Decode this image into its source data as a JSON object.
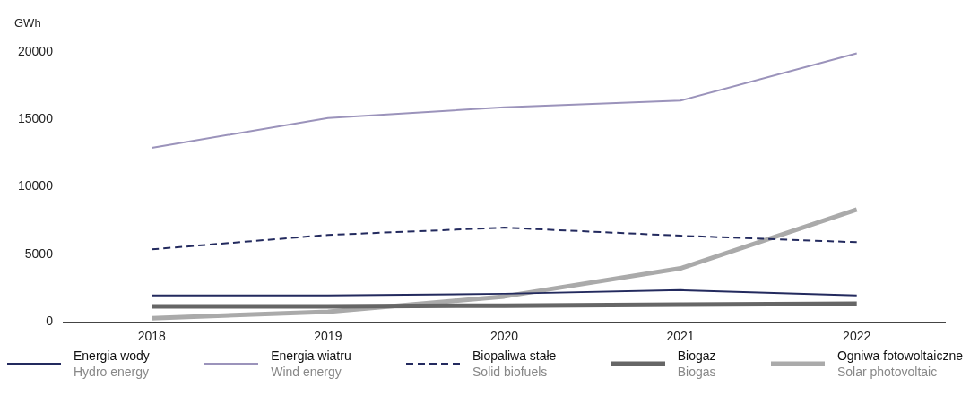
{
  "chart_data": {
    "type": "line",
    "ylabel": "GWh",
    "categories": [
      "2018",
      "2019",
      "2020",
      "2021",
      "2022"
    ],
    "ylim": [
      0,
      20000
    ],
    "yticks": [
      0,
      5000,
      10000,
      15000,
      20000
    ],
    "grid": false,
    "legend": "bottom",
    "marker": "none",
    "series": [
      {
        "name": "Energia wody\nHydro energy",
        "color": "#232a5e",
        "line_style": "solid",
        "values": [
          1950,
          1950,
          2080,
          2350,
          1950
        ]
      },
      {
        "name": "Energia wiatru\nWind energy",
        "color": "#9b93bb",
        "line_style": "solid",
        "values": [
          12900,
          15100,
          15900,
          16400,
          19900
        ]
      },
      {
        "name": "Biopaliwa stałe\nSolid biofuels",
        "color": "#232a5e",
        "line_style": "dashed",
        "values": [
          5370,
          6440,
          6980,
          6380,
          5900
        ]
      },
      {
        "name": "Biogaz\nBiogas",
        "color": "#666666",
        "line_style": "solid",
        "values": [
          1140,
          1150,
          1200,
          1280,
          1340
        ]
      },
      {
        "name": "Ogniwa fotowoltaiczne\nSolar photovoltaic",
        "color": "#aaaaaa",
        "line_style": "solid",
        "values": [
          270,
          740,
          1880,
          3960,
          8320
        ]
      }
    ]
  }
}
